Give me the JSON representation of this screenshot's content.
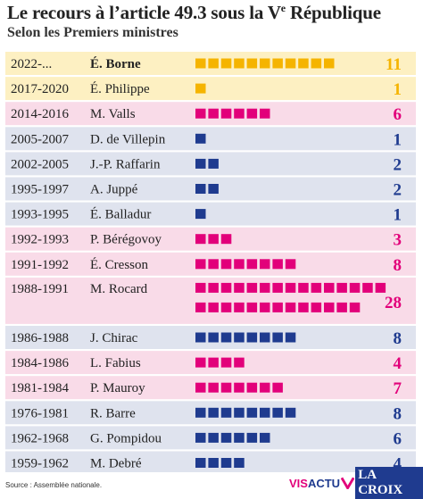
{
  "header": {
    "title_main": "Le recours à l’article 49.3 sous la V",
    "title_sup": "e",
    "title_end": " République",
    "subtitle": "Selon les Premiers ministres"
  },
  "colors": {
    "yellow": "#f5b400",
    "yellow_bg": "#fdf0c2",
    "pink": "#e2007a",
    "pink_bg": "#f9dbe8",
    "blue": "#1f3b8f",
    "blue_bg": "#dfe3ee"
  },
  "chart_data": {
    "type": "bar",
    "title": "Le recours à l’article 49.3 sous la Ve République",
    "subtitle": "Selon les Premiers ministres",
    "rows": [
      {
        "period": "2022-...",
        "pm": "É. Borne",
        "value": 11,
        "color": "yellow",
        "bold": true
      },
      {
        "period": "2017-2020",
        "pm": "É. Philippe",
        "value": 1,
        "color": "yellow",
        "bold": false
      },
      {
        "period": "2014-2016",
        "pm": "M. Valls",
        "value": 6,
        "color": "pink",
        "bold": false
      },
      {
        "period": "2005-2007",
        "pm": "D. de Villepin",
        "value": 1,
        "color": "blue",
        "bold": false
      },
      {
        "period": "2002-2005",
        "pm": "J.-P. Raffarin",
        "value": 2,
        "color": "blue",
        "bold": false
      },
      {
        "period": "1995-1997",
        "pm": "A. Juppé",
        "value": 2,
        "color": "blue",
        "bold": false
      },
      {
        "period": "1993-1995",
        "pm": "É. Balladur",
        "value": 1,
        "color": "blue",
        "bold": false
      },
      {
        "period": "1992-1993",
        "pm": "P. Bérégovoy",
        "value": 3,
        "color": "pink",
        "bold": false
      },
      {
        "period": "1991-1992",
        "pm": "É. Cresson",
        "value": 8,
        "color": "pink",
        "bold": false
      },
      {
        "period": "1988-1991",
        "pm": "M. Rocard",
        "value": 28,
        "color": "pink",
        "bold": false
      },
      {
        "period": "1986-1988",
        "pm": "J. Chirac",
        "value": 8,
        "color": "blue",
        "bold": false
      },
      {
        "period": "1984-1986",
        "pm": "L. Fabius",
        "value": 4,
        "color": "pink",
        "bold": false
      },
      {
        "period": "1981-1984",
        "pm": "P. Mauroy",
        "value": 7,
        "color": "pink",
        "bold": false
      },
      {
        "period": "1976-1981",
        "pm": "R. Barre",
        "value": 8,
        "color": "blue",
        "bold": false
      },
      {
        "period": "1962-1968",
        "pm": "G. Pompidou",
        "value": 6,
        "color": "blue",
        "bold": false
      },
      {
        "period": "1959-1962",
        "pm": "M. Debré",
        "value": 4,
        "color": "blue",
        "bold": false
      }
    ]
  },
  "footer": {
    "source": "Source : Assemblée nationale.",
    "logo_vis": "VIS",
    "logo_actu": "ACTU",
    "logo_croix": "LA CROIX"
  }
}
